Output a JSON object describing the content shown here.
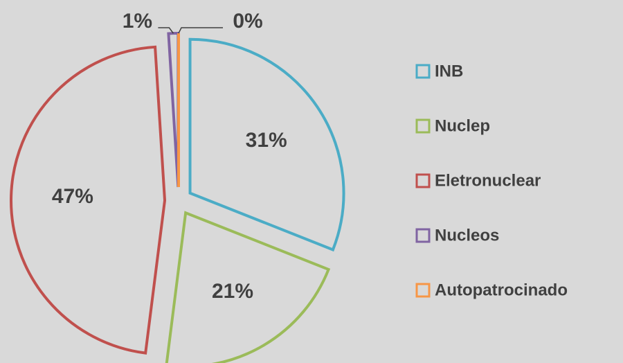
{
  "chart_data": {
    "type": "pie",
    "categories": [
      "INB",
      "Nuclep",
      "Eletronuclear",
      "Nucleos",
      "Autopatrocinado"
    ],
    "values": [
      31,
      21,
      47,
      1,
      0
    ],
    "value_labels": [
      "31%",
      "21%",
      "47%",
      "1%",
      "0%"
    ],
    "colors": [
      "#4bacc6",
      "#9bbb59",
      "#c0504d",
      "#8064a2",
      "#f79646"
    ],
    "legend": "right"
  }
}
